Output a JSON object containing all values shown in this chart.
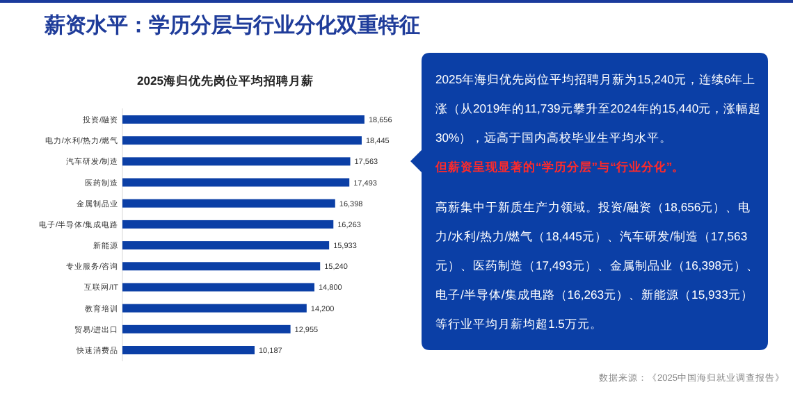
{
  "chart_data": {
    "type": "bar",
    "orientation": "horizontal",
    "title": "薪资水平：学历分层与行业分化双重特征",
    "subtitle": "2025海归优先岗位平均招聘月薪",
    "categories": [
      "投资/融资",
      "电力/水利/热力/燃气",
      "汽车研发/制造",
      "医药制造",
      "金属制品业",
      "电子/半导体/集成电路",
      "新能源",
      "专业服务/咨询",
      "互联网/IT",
      "教育培训",
      "贸易/进出口",
      "快速消费品"
    ],
    "values": [
      18656,
      18445,
      17563,
      17493,
      16398,
      16263,
      15933,
      15240,
      14800,
      14200,
      12955,
      10187
    ],
    "value_labels": [
      "18,656",
      "18,445",
      "17,563",
      "17,493",
      "16,398",
      "16,263",
      "15,933",
      "15,240",
      "14,800",
      "14,200",
      "12,955",
      "10,187"
    ],
    "color": "#0b3fa6",
    "annotations": [
      "2025年海归优先岗位平均招聘月薪为15,240元，连续6年上涨（从2019年的11,739元攀升至2024年的15,440元，涨幅超30%），远高于国内高校毕业生平均水平。",
      "但薪资呈现显著的“学历分层”与“行业分化”。",
      "高薪集中于新质生产力领域。投资/融资（18,656元）、电力/水利/热力/燃气（18,445元）、汽车研发/制造（17,563元）、医药制造（17,493元）、金属制品业（16,398元）、电子/半导体/集成电路（16,263元）、新能源（15,933元）等行业平均月薪均超1.5万元。",
      "数据来源：《2025中国海归就业调查报告》"
    ]
  }
}
